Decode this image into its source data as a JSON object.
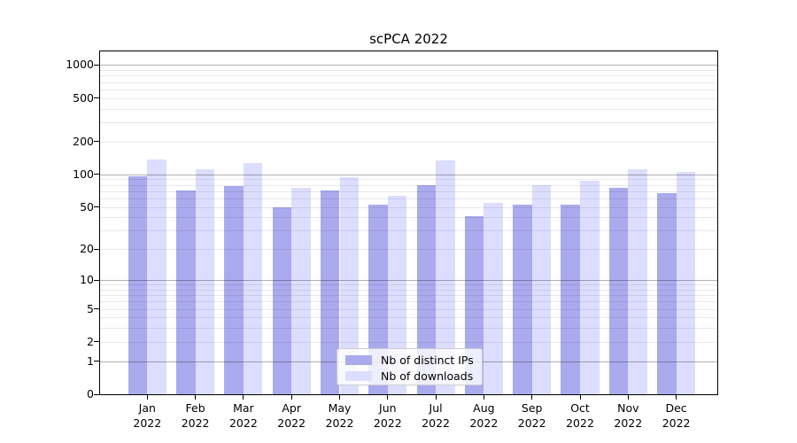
{
  "figure": {
    "title": "scPCA 2022"
  },
  "legend": {
    "items": [
      {
        "label": "Nb of distinct IPs",
        "color": "#aaaaee"
      },
      {
        "label": "Nb of downloads",
        "color": "#ddddff"
      }
    ],
    "position": "lower center"
  },
  "colors": {
    "distinct_ips_bar": "#aaaaee",
    "downloads_bar": "#ddddff",
    "major_gridline": "#b3b3b3",
    "minor_gridline": "#e9e9e9",
    "axis_spine": "#000000",
    "background": "#ffffff"
  },
  "chart_data": {
    "type": "bar",
    "title": "scPCA 2022",
    "y_scale": "log1p (bar position proportional to log10(value+1))",
    "categories": [
      "Jan 2022",
      "Feb 2022",
      "Mar 2022",
      "Apr 2022",
      "May 2022",
      "Jun 2022",
      "Jul 2022",
      "Aug 2022",
      "Sep 2022",
      "Oct 2022",
      "Nov 2022",
      "Dec 2022"
    ],
    "months": [
      "Jan",
      "Feb",
      "Mar",
      "Apr",
      "May",
      "Jun",
      "Jul",
      "Aug",
      "Sep",
      "Oct",
      "Nov",
      "Dec"
    ],
    "year": "2022",
    "series": [
      {
        "name": "Nb of distinct IPs",
        "values": [
          96,
          71,
          78,
          50,
          71,
          52,
          79,
          41,
          52,
          52,
          75,
          67
        ]
      },
      {
        "name": "Nb of downloads",
        "values": [
          137,
          112,
          127,
          75,
          94,
          64,
          135,
          54,
          79,
          88,
          111,
          106
        ]
      }
    ],
    "y_ticks": [
      0,
      1,
      2,
      5,
      10,
      20,
      50,
      100,
      200,
      500,
      1000
    ],
    "ylim": [
      0,
      1333
    ],
    "grid": "horizontal only; major lines at 1, 10, 100, 1000; faint minor lines at 2-9 steps of each decade",
    "legend_position": "lower center",
    "xlabel": "",
    "ylabel": ""
  }
}
